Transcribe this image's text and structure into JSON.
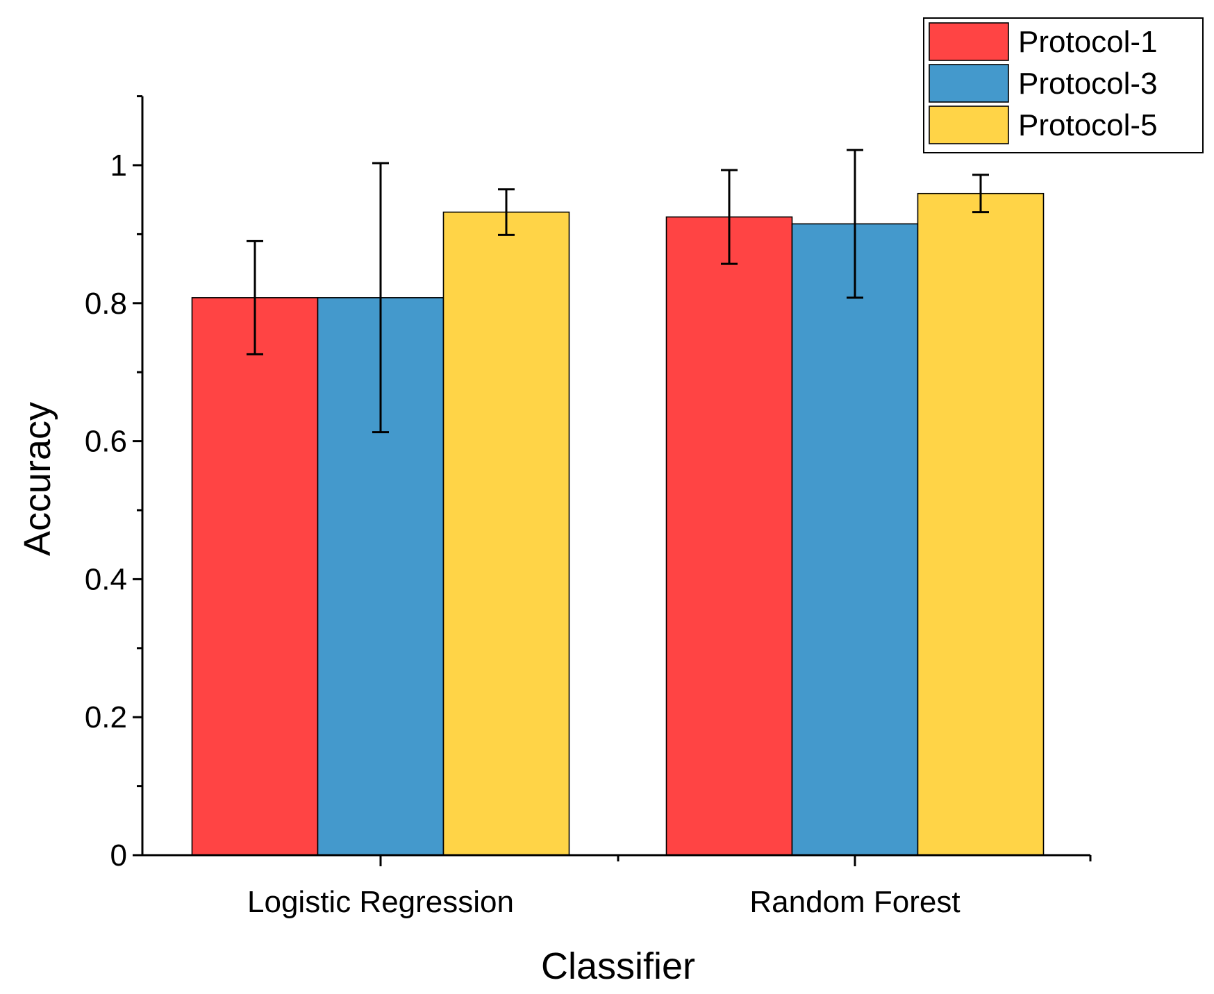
{
  "chart_data": {
    "type": "bar",
    "title": "",
    "xlabel": "Classifier",
    "ylabel": "Accuracy",
    "ylim": [
      0,
      1.1
    ],
    "yticks": [
      0,
      0.2,
      0.4,
      0.6,
      0.8,
      1
    ],
    "ytick_labels": [
      "0",
      "0.2",
      "0.4",
      "0.6",
      "0.8",
      "1"
    ],
    "yminor_step": 0.1,
    "categories": [
      "Logistic Regression",
      "Random Forest"
    ],
    "series": [
      {
        "name": "Protocol-1",
        "color": "#FF4444",
        "values": [
          0.808,
          0.925
        ],
        "errors": [
          0.082,
          0.068
        ]
      },
      {
        "name": "Protocol-3",
        "color": "#4499CC",
        "values": [
          0.808,
          0.915
        ],
        "errors": [
          0.195,
          0.107
        ]
      },
      {
        "name": "Protocol-5",
        "color": "#FFD447",
        "values": [
          0.932,
          0.959
        ],
        "errors": [
          0.033,
          0.027
        ]
      }
    ],
    "legend_position": "top-right",
    "grid": false
  }
}
